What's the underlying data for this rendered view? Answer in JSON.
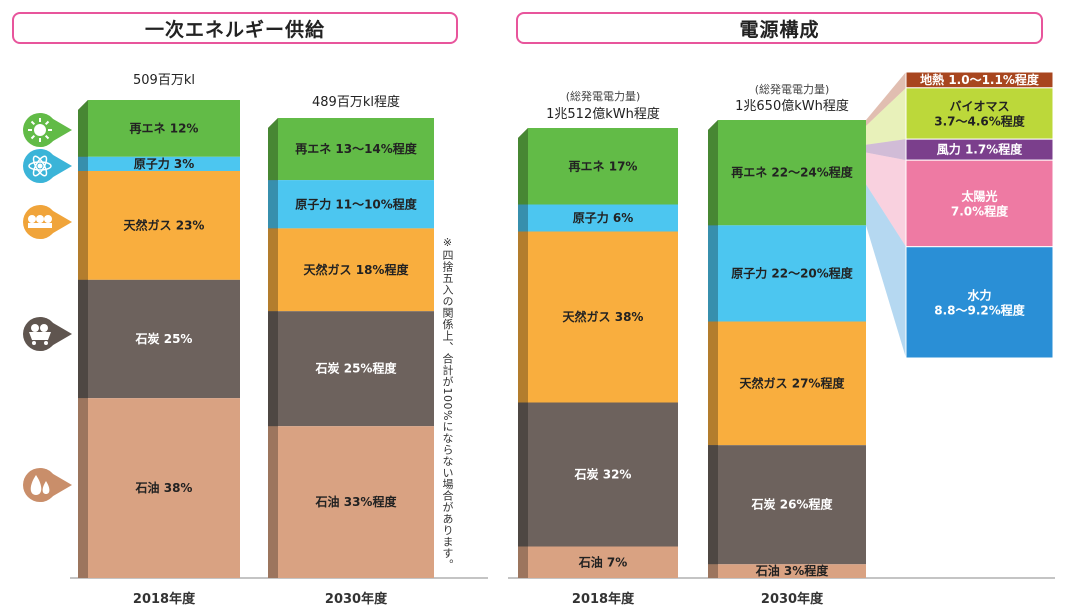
{
  "panels": {
    "primary": {
      "title": "一次エネルギー供給"
    },
    "power": {
      "title": "電源構成"
    }
  },
  "note": "※四捨五入の関係上、合計が100%にならない場合があります。",
  "icons": [
    "sun-icon",
    "atom-icon",
    "lng-ship-icon",
    "coal-cart-icon",
    "oil-drop-icon"
  ],
  "colors": {
    "renewable": "#62bb47",
    "nuclear": "#4cc6f0",
    "gas": "#f9ae3e",
    "coal": "#6d625d",
    "oil": "#d9a282",
    "geothermal": "#a8461f",
    "biomass": "#bcd83a",
    "wind": "#7b3f8c",
    "solar": "#ee7aa3",
    "hydro": "#2a8fd6",
    "accent": "#e8559c"
  },
  "chart_data": [
    {
      "type": "bar",
      "stacked": true,
      "title": "一次エネルギー供給",
      "categories": [
        "2018年度",
        "2030年度"
      ],
      "totals": [
        "509百万kl",
        "489百万kl程度"
      ],
      "series": [
        {
          "key": "renewable",
          "name": "再エネ",
          "values": [
            12,
            13.5
          ],
          "labels": [
            "再エネ 12%",
            "再エネ 13〜14%程度"
          ]
        },
        {
          "key": "nuclear",
          "name": "原子力",
          "values": [
            3,
            10.5
          ],
          "labels": [
            "原子力 3%",
            "原子力 11〜10%程度"
          ]
        },
        {
          "key": "gas",
          "name": "天然ガス",
          "values": [
            23,
            18
          ],
          "labels": [
            "天然ガス 23%",
            "天然ガス 18%程度"
          ]
        },
        {
          "key": "coal",
          "name": "石炭",
          "values": [
            25,
            25
          ],
          "labels": [
            "石炭 25%",
            "石炭 25%程度"
          ]
        },
        {
          "key": "oil",
          "name": "石油",
          "values": [
            38,
            33
          ],
          "labels": [
            "石油 38%",
            "石油 33%程度"
          ]
        }
      ]
    },
    {
      "type": "bar",
      "stacked": true,
      "title": "電源構成",
      "categories": [
        "2018年度",
        "2030年度"
      ],
      "totals_sub": [
        "(総発電電力量)",
        "(総発電電力量)"
      ],
      "totals": [
        "1兆512億kWh程度",
        "1兆650億kWh程度"
      ],
      "series": [
        {
          "key": "renewable",
          "name": "再エネ",
          "values": [
            17,
            23
          ],
          "labels": [
            "再エネ 17%",
            "再エネ 22〜24%程度"
          ]
        },
        {
          "key": "nuclear",
          "name": "原子力",
          "values": [
            6,
            21
          ],
          "labels": [
            "原子力 6%",
            "原子力 22〜20%程度"
          ]
        },
        {
          "key": "gas",
          "name": "天然ガス",
          "values": [
            38,
            27
          ],
          "labels": [
            "天然ガス 38%",
            "天然ガス 27%程度"
          ]
        },
        {
          "key": "coal",
          "name": "石炭",
          "values": [
            32,
            26
          ],
          "labels": [
            "石炭 32%",
            "石炭 26%程度"
          ]
        },
        {
          "key": "oil",
          "name": "石油",
          "values": [
            7,
            3
          ],
          "labels": [
            "石油 7%",
            "石油 3%程度"
          ]
        }
      ],
      "renewable_breakdown": [
        {
          "key": "geothermal",
          "name": "地熱",
          "value": 1.05,
          "label": "地熱 1.0〜1.1%程度"
        },
        {
          "key": "biomass",
          "name": "バイオマス",
          "value": 4.15,
          "label": "バイオマス 3.7〜4.6%程度"
        },
        {
          "key": "wind",
          "name": "風力",
          "value": 1.7,
          "label": "風力 1.7%程度"
        },
        {
          "key": "solar",
          "name": "太陽光",
          "value": 7.0,
          "label": "太陽光 7.0%程度"
        },
        {
          "key": "hydro",
          "name": "水力",
          "value": 9.0,
          "label": "水力 8.8〜9.2%程度"
        }
      ]
    }
  ]
}
